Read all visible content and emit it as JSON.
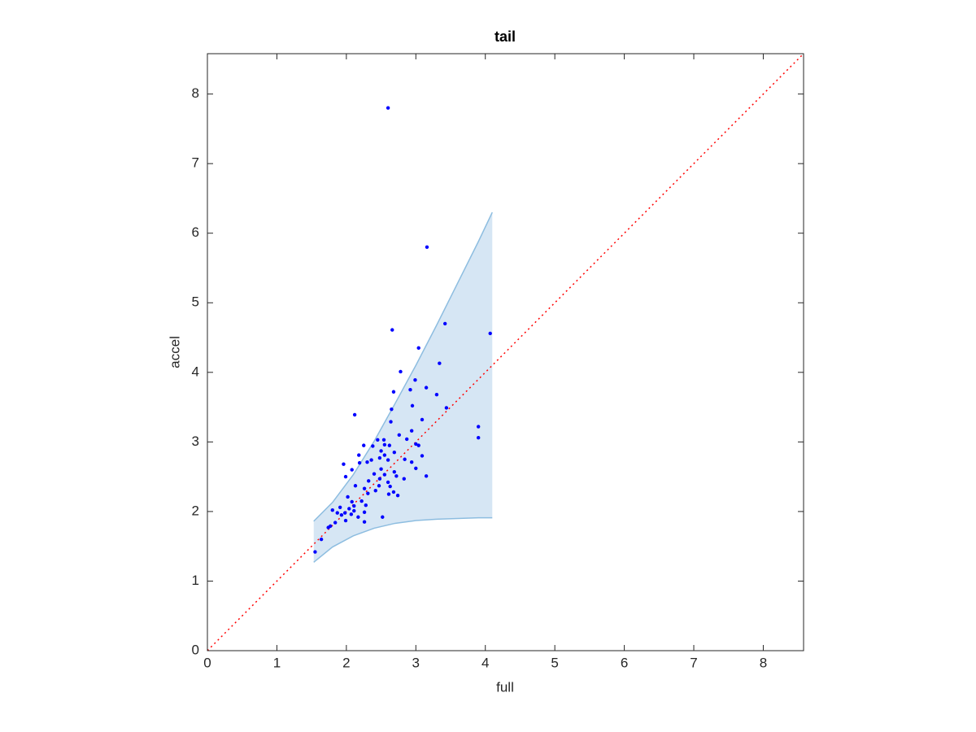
{
  "chart_data": {
    "type": "scatter",
    "title": "tail",
    "xlabel": "full",
    "ylabel": "accel",
    "color": "#0000ff",
    "x": [
      2.6,
      3.16,
      2.66,
      3.42,
      4.07,
      3.04,
      3.34,
      2.78,
      2.99,
      2.68,
      3.15,
      2.92,
      3.3,
      3.44,
      2.95,
      2.12,
      2.65,
      3.09,
      2.64,
      3.9,
      3.9,
      2.94,
      2.76,
      2.25,
      2.45,
      2.54,
      2.87,
      2.38,
      2.55,
      2.62,
      3.0,
      3.04,
      2.5,
      2.69,
      2.18,
      2.55,
      3.09,
      2.36,
      2.48,
      2.84,
      2.19,
      2.3,
      2.6,
      2.94,
      1.96,
      2.08,
      2.5,
      2.69,
      3.0,
      2.4,
      2.72,
      2.55,
      2.83,
      3.15,
      1.99,
      2.48,
      2.32,
      2.6,
      2.13,
      2.47,
      2.63,
      2.26,
      2.42,
      2.31,
      2.61,
      2.68,
      2.74,
      2.02,
      2.22,
      2.08,
      2.11,
      1.91,
      1.8,
      2.28,
      2.04,
      2.11,
      1.98,
      1.87,
      1.93,
      2.07,
      2.17,
      2.52,
      2.26,
      1.99,
      2.26,
      1.84,
      1.77,
      1.74,
      1.64,
      1.55
    ],
    "values": [
      7.8,
      5.8,
      4.61,
      4.7,
      4.56,
      4.35,
      4.13,
      4.01,
      3.89,
      3.72,
      3.78,
      3.75,
      3.68,
      3.49,
      3.52,
      3.39,
      3.47,
      3.32,
      3.29,
      3.22,
      3.06,
      3.16,
      3.1,
      2.95,
      3.03,
      3.03,
      3.04,
      2.94,
      2.96,
      2.95,
      2.97,
      2.95,
      2.87,
      2.85,
      2.81,
      2.81,
      2.8,
      2.74,
      2.77,
      2.75,
      2.7,
      2.71,
      2.74,
      2.71,
      2.68,
      2.6,
      2.61,
      2.57,
      2.62,
      2.54,
      2.51,
      2.53,
      2.47,
      2.51,
      2.5,
      2.47,
      2.44,
      2.42,
      2.37,
      2.37,
      2.36,
      2.33,
      2.3,
      2.26,
      2.25,
      2.28,
      2.23,
      2.21,
      2.15,
      2.14,
      2.08,
      2.06,
      2.02,
      2.09,
      2.04,
      2.01,
      1.98,
      1.98,
      1.95,
      1.96,
      1.92,
      1.92,
      1.99,
      1.87,
      1.85,
      1.84,
      1.79,
      1.77,
      1.6,
      1.42
    ],
    "band": {
      "x": [
        1.53,
        1.8,
        2.1,
        2.4,
        2.7,
        3.0,
        3.3,
        3.6,
        3.9,
        4.1
      ],
      "upper": [
        1.86,
        2.13,
        2.53,
        3.01,
        3.55,
        4.1,
        4.68,
        5.28,
        5.88,
        6.3
      ],
      "lower": [
        1.27,
        1.49,
        1.65,
        1.76,
        1.83,
        1.87,
        1.89,
        1.9,
        1.91,
        1.91
      ],
      "color": "#d6e6f4",
      "edge_color": "#8dbde0"
    },
    "reference_line": {
      "x": [
        0,
        8.58
      ],
      "y": [
        0,
        8.58
      ],
      "color": "#ff0000"
    },
    "xlim": [
      0,
      8.58
    ],
    "ylim": [
      0,
      8.58
    ],
    "xticks": [
      0,
      1,
      2,
      3,
      4,
      5,
      6,
      7,
      8
    ],
    "yticks": [
      0,
      1,
      2,
      3,
      4,
      5,
      6,
      7,
      8
    ],
    "grid": false,
    "box": true
  }
}
